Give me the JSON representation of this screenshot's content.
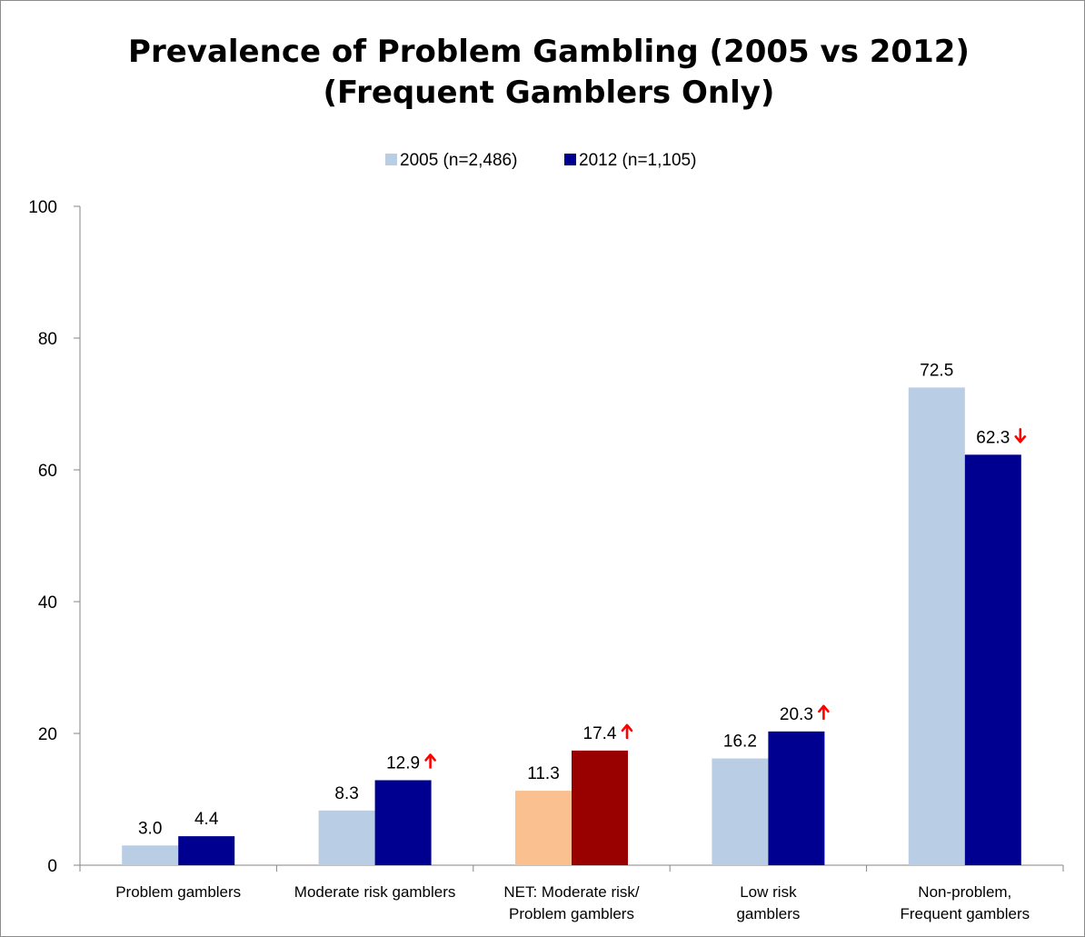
{
  "chart_data": {
    "type": "bar",
    "title": [
      "Prevalence of Problem Gambling (2005 vs 2012)",
      "(Frequent Gamblers Only)"
    ],
    "xlabel": "",
    "ylabel": "",
    "ylim": [
      0,
      100
    ],
    "yticks": [
      "0",
      "20",
      "40",
      "60",
      "80",
      "100"
    ],
    "legend_position": "top-center",
    "grid": false,
    "categories": [
      [
        "Problem gamblers"
      ],
      [
        "Moderate risk gamblers"
      ],
      [
        "NET: Moderate risk/",
        "Problem gamblers"
      ],
      [
        "Low risk",
        "gamblers"
      ],
      [
        "Non-problem,",
        "Frequent gamblers"
      ]
    ],
    "series": [
      {
        "name": "2005 (n=2,486)",
        "color": "#b9cde5",
        "values": [
          3.0,
          8.3,
          11.3,
          16.2,
          72.5
        ],
        "labels": [
          "3.0",
          "8.3",
          "11.3",
          "16.2",
          "72.5"
        ],
        "point_colors": [
          null,
          null,
          "#fac090",
          null,
          null
        ]
      },
      {
        "name": "2012 (n=1,105)",
        "color": "#000090",
        "values": [
          4.4,
          12.9,
          17.4,
          20.3,
          62.3
        ],
        "labels": [
          "4.4",
          "12.9",
          "17.4",
          "20.3",
          "62.3"
        ],
        "point_colors": [
          null,
          null,
          "#990000",
          null,
          null
        ],
        "change_arrows": [
          null,
          "up",
          "up",
          "up",
          "down"
        ]
      }
    ],
    "arrow_color": "#ff0000"
  }
}
